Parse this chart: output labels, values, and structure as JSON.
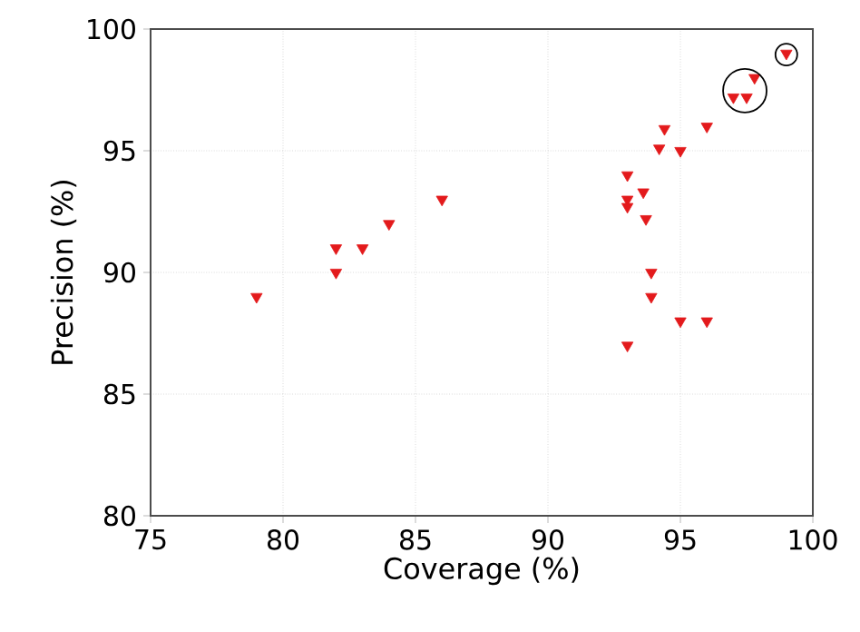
{
  "chart_data": {
    "type": "scatter",
    "xlabel": "Coverage (%)",
    "ylabel": "Precision (%)",
    "xlim": [
      75,
      100
    ],
    "ylim": [
      80,
      100
    ],
    "xticks": [
      75,
      80,
      85,
      90,
      95,
      100
    ],
    "yticks": [
      80,
      85,
      90,
      95,
      100
    ],
    "grid": true,
    "marker": "triangle",
    "series": [
      {
        "color": "#e31a1c",
        "x": [
          79,
          82,
          82,
          83,
          84,
          86,
          93,
          93,
          93,
          93.6,
          93.7,
          93.9,
          93.9,
          93,
          95,
          96,
          94.4,
          94.2,
          95,
          96,
          97,
          97.5,
          97.8,
          99
        ],
        "values": [
          89,
          91,
          90,
          91,
          92,
          93,
          94,
          93,
          92.7,
          93.3,
          92.2,
          90,
          89,
          87,
          88,
          88,
          95.9,
          95.1,
          95,
          96,
          97.2,
          97.2,
          98,
          99
        ]
      }
    ]
  }
}
